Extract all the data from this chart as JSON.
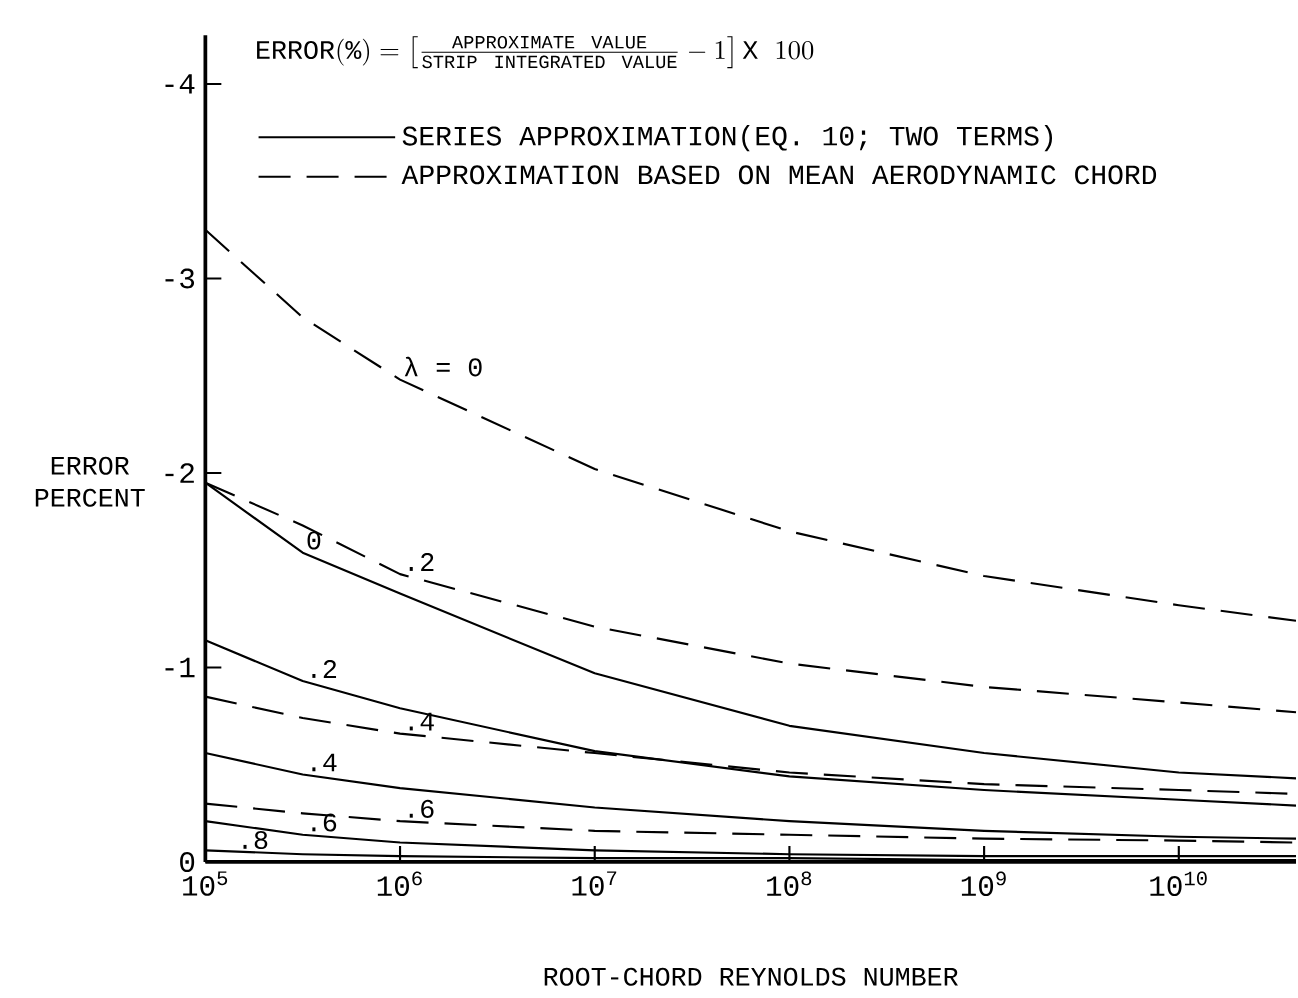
{
  "chart_data": {
    "type": "line",
    "title": "\\mathrm{ERROR(\\%)} = \\left[\\frac{\\mathrm{APPROXIMATE\\ VALUE}}{\\mathrm{STRIP\\ INTEGRATED\\ VALUE}} - 1\\right] \\mathrm{X}\\ 100",
    "xlabel": "ROOT-CHORD REYNOLDS NUMBER",
    "ylabel": "ERROR PERCENT",
    "log": "x",
    "x": [
      100000,
      316228,
      1000000,
      10000000,
      100000000,
      1000000000,
      10000000000,
      40000000000
    ],
    "xlim": [
      100000,
      40000000000
    ],
    "xticks": [
      {
        "value": 100000,
        "label": "10$^{5}$"
      },
      {
        "value": 1000000,
        "label": "10$^{6}$"
      },
      {
        "value": 10000000,
        "label": "10$^{7}$"
      },
      {
        "value": 100000000,
        "label": "10$^{8}$"
      },
      {
        "value": 1000000000,
        "label": "10$^{9}$"
      },
      {
        "value": 10000000000,
        "label": "10$^{10}$"
      }
    ],
    "ylim": [
      0,
      -4.25
    ],
    "yticks": [
      0,
      -1,
      -2,
      -3,
      -4
    ],
    "legend": "top left",
    "grid": false,
    "series": [
      {
        "name": "SERIES APPROXIMATION(EQ. 10; TWO TERMS)",
        "color": "#000000",
        "line_style": "solid",
        "values": [
          -1.95,
          -1.59,
          -1.38,
          -0.97,
          -0.7,
          -0.56,
          -0.46,
          -0.43
        ]
      },
      {
        "name": "APPROXIMATION BASED ON MEAN AERODYNAMIC CHORD",
        "color": "#000000",
        "line_style": "dashed",
        "values": [
          -3.25,
          -2.8,
          -2.48,
          -2.02,
          -1.7,
          -1.47,
          -1.32,
          -1.24
        ]
      },
      {
        "color": "#000000",
        "line_style": "dashed",
        "values": [
          -1.95,
          -1.73,
          -1.48,
          -1.21,
          -1.02,
          -0.9,
          -0.82,
          -0.77
        ]
      },
      {
        "color": "#000000",
        "line_style": "solid",
        "values": [
          -1.14,
          -0.93,
          -0.79,
          -0.57,
          -0.44,
          -0.37,
          -0.32,
          -0.29
        ]
      },
      {
        "color": "#000000",
        "line_style": "dashed",
        "values": [
          -0.85,
          -0.74,
          -0.66,
          -0.56,
          -0.46,
          -0.4,
          -0.37,
          -0.35
        ]
      },
      {
        "color": "#000000",
        "line_style": "solid",
        "values": [
          -0.56,
          -0.45,
          -0.38,
          -0.28,
          -0.21,
          -0.16,
          -0.13,
          -0.12
        ]
      },
      {
        "color": "#000000",
        "line_style": "dashed",
        "values": [
          -0.3,
          -0.25,
          -0.21,
          -0.16,
          -0.14,
          -0.12,
          -0.11,
          -0.1
        ]
      },
      {
        "color": "#000000",
        "line_style": "solid",
        "values": [
          -0.21,
          -0.14,
          -0.1,
          -0.06,
          -0.04,
          -0.03,
          -0.03,
          -0.03
        ]
      },
      {
        "color": "#000000",
        "line_style": "solid",
        "values": [
          -0.06,
          -0.04,
          -0.03,
          -0.02,
          -0.02,
          -0.01,
          -0.01,
          -0.01
        ]
      }
    ],
    "annotations": [
      {
        "text": "λ = 0",
        "x": 1000000,
        "y": -2.48
      },
      {
        "text": "0",
        "x": 316228,
        "y": -1.59
      },
      {
        "text": ".2",
        "x": 1000000,
        "y": -1.48
      },
      {
        "text": ".2",
        "x": 316228,
        "y": -0.93
      },
      {
        "text": ".4",
        "x": 1000000,
        "y": -0.66
      },
      {
        "text": ".4",
        "x": 316228,
        "y": -0.45
      },
      {
        "text": ".6",
        "x": 1000000,
        "y": -0.21
      },
      {
        "text": ".6",
        "x": 316228,
        "y": -0.14
      },
      {
        "text": ".8",
        "x": 140000,
        "y": -0.05
      }
    ]
  }
}
